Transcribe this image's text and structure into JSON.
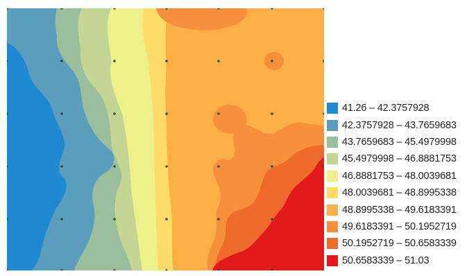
{
  "legend": {
    "classes": [
      {
        "label": "41.26 – 42.3757928",
        "color": "#1f8ad3"
      },
      {
        "label": "42.3757928 – 43.7659683",
        "color": "#5b9dbd"
      },
      {
        "label": "43.7659683 – 45.4979998",
        "color": "#9bbf9d"
      },
      {
        "label": "45.4979998 – 46.8881753",
        "color": "#c4d693"
      },
      {
        "label": "46.8881753 – 48.0039681",
        "color": "#eef08c"
      },
      {
        "label": "48.0039681 – 48.8995338",
        "color": "#fddc6a"
      },
      {
        "label": "48.8995338 – 49.6183391",
        "color": "#fcae47"
      },
      {
        "label": "49.6183391 – 50.1952719",
        "color": "#f7903c"
      },
      {
        "label": "50.1952719 – 50.6583339",
        "color": "#ef6b2c"
      },
      {
        "label": "50.6583339 – 51.03",
        "color": "#e31a1c"
      }
    ]
  },
  "map": {
    "sample_point_color": "#2f4f2f"
  }
}
